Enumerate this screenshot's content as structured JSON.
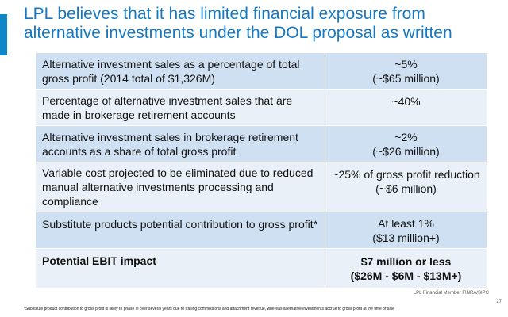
{
  "title": "LPL believes that it has limited financial exposure from alternative investments under the DOL proposal as written",
  "rows": [
    {
      "label": "Alternative investment sales as a percentage of total gross profit (2014 total of $1,326M)",
      "value_line1": "~5%",
      "value_line2": "(~$65 million)"
    },
    {
      "label": "Percentage of alternative investment sales that are made in brokerage retirement accounts",
      "value_line1": "~40%",
      "value_line2": ""
    },
    {
      "label": "Alternative investment sales in brokerage retirement accounts as a share of total gross profit",
      "value_line1": "~2%",
      "value_line2": "(~$26 million)"
    },
    {
      "label": "Variable cost projected to be eliminated due to reduced manual alternative investments processing and compliance",
      "value_line1": "~25% of gross profit reduction",
      "value_line2": "(~$6 million)"
    },
    {
      "label": "Substitute products potential contribution to gross profit*",
      "value_line1": "At least 1%",
      "value_line2": "($13 million+)"
    },
    {
      "label": "Potential EBIT impact",
      "value_line1": "$7 million or less",
      "value_line2": "($26M - $6M - $13M+)"
    }
  ],
  "footer": {
    "firm": "LPL Financial  Member FINRA/SIPC",
    "page": "27",
    "footnote": "*Substitute product contribution to gross profit is likely to phase in over several years due to trailing commissions and attachment revenue, whereas alternative investments accrue to gross profit at the time of sale"
  },
  "colors": {
    "accent": "#0f86c8",
    "title": "#1579c2",
    "row_dark": "#cfe0f2",
    "row_light": "#e9f0f8"
  }
}
